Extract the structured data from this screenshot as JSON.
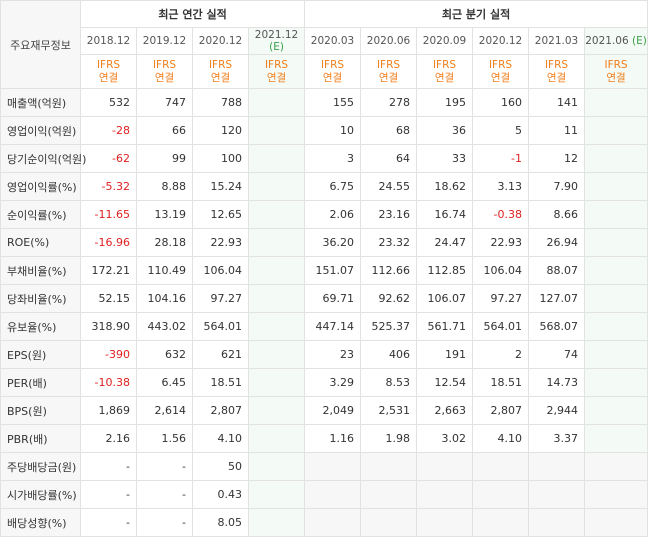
{
  "header": {
    "label_col": "주요재무정보",
    "annual_title": "최근 연간 실적",
    "quarter_title": "최근 분기 실적",
    "annual_periods": [
      "2018.12",
      "2019.12",
      "2020.12",
      "2021.12"
    ],
    "annual_est_mark": "(E)",
    "quarter_periods": [
      "2020.03",
      "2020.06",
      "2020.09",
      "2020.12",
      "2021.03",
      "2021.06"
    ],
    "quarter_est_mark": "(E)",
    "acct_top": "IFRS",
    "acct_bottom": "연결"
  },
  "rows": [
    {
      "label": "매출액(억원)",
      "annual": [
        "532",
        "747",
        "788",
        ""
      ],
      "quarter": [
        "155",
        "278",
        "195",
        "160",
        "141",
        ""
      ]
    },
    {
      "label": "영업이익(억원)",
      "annual": [
        "-28",
        "66",
        "120",
        ""
      ],
      "quarter": [
        "10",
        "68",
        "36",
        "5",
        "11",
        ""
      ]
    },
    {
      "label": "당기순이익(억원)",
      "annual": [
        "-62",
        "99",
        "100",
        ""
      ],
      "quarter": [
        "3",
        "64",
        "33",
        "-1",
        "12",
        ""
      ]
    },
    {
      "label": "영업이익률(%)",
      "annual": [
        "-5.32",
        "8.88",
        "15.24",
        ""
      ],
      "quarter": [
        "6.75",
        "24.55",
        "18.62",
        "3.13",
        "7.90",
        ""
      ]
    },
    {
      "label": "순이익률(%)",
      "annual": [
        "-11.65",
        "13.19",
        "12.65",
        ""
      ],
      "quarter": [
        "2.06",
        "23.16",
        "16.74",
        "-0.38",
        "8.66",
        ""
      ]
    },
    {
      "label": "ROE(%)",
      "annual": [
        "-16.96",
        "28.18",
        "22.93",
        ""
      ],
      "quarter": [
        "36.20",
        "23.32",
        "24.47",
        "22.93",
        "26.94",
        ""
      ]
    },
    {
      "label": "부채비율(%)",
      "annual": [
        "172.21",
        "110.49",
        "106.04",
        ""
      ],
      "quarter": [
        "151.07",
        "112.66",
        "112.85",
        "106.04",
        "88.07",
        ""
      ]
    },
    {
      "label": "당좌비율(%)",
      "annual": [
        "52.15",
        "104.16",
        "97.27",
        ""
      ],
      "quarter": [
        "69.71",
        "92.62",
        "106.07",
        "97.27",
        "127.07",
        ""
      ]
    },
    {
      "label": "유보율(%)",
      "annual": [
        "318.90",
        "443.02",
        "564.01",
        ""
      ],
      "quarter": [
        "447.14",
        "525.37",
        "561.71",
        "564.01",
        "568.07",
        ""
      ]
    },
    {
      "label": "EPS(원)",
      "annual": [
        "-390",
        "632",
        "621",
        ""
      ],
      "quarter": [
        "23",
        "406",
        "191",
        "2",
        "74",
        ""
      ]
    },
    {
      "label": "PER(배)",
      "annual": [
        "-10.38",
        "6.45",
        "18.51",
        ""
      ],
      "quarter": [
        "3.29",
        "8.53",
        "12.54",
        "18.51",
        "14.73",
        ""
      ]
    },
    {
      "label": "BPS(원)",
      "annual": [
        "1,869",
        "2,614",
        "2,807",
        ""
      ],
      "quarter": [
        "2,049",
        "2,531",
        "2,663",
        "2,807",
        "2,944",
        ""
      ]
    },
    {
      "label": "PBR(배)",
      "annual": [
        "2.16",
        "1.56",
        "4.10",
        ""
      ],
      "quarter": [
        "1.16",
        "1.98",
        "3.02",
        "4.10",
        "3.37",
        ""
      ]
    },
    {
      "label": "주당배당금(원)",
      "annual": [
        "-",
        "-",
        "50",
        ""
      ],
      "quarter": [
        "",
        "",
        "",
        "",
        "",
        ""
      ]
    },
    {
      "label": "시가배당률(%)",
      "annual": [
        "-",
        "-",
        "0.43",
        ""
      ],
      "quarter": [
        "",
        "",
        "",
        "",
        "",
        ""
      ]
    },
    {
      "label": "배당성향(%)",
      "annual": [
        "-",
        "-",
        "8.05",
        ""
      ],
      "quarter": [
        "",
        "",
        "",
        "",
        "",
        ""
      ]
    }
  ],
  "colors": {
    "accent_orange": "#ef7d1a",
    "negative_red": "#e02020",
    "estimate_green": "#3aa04a",
    "estimate_bg": "#f4faf5",
    "label_bg": "#f7f7f7"
  }
}
